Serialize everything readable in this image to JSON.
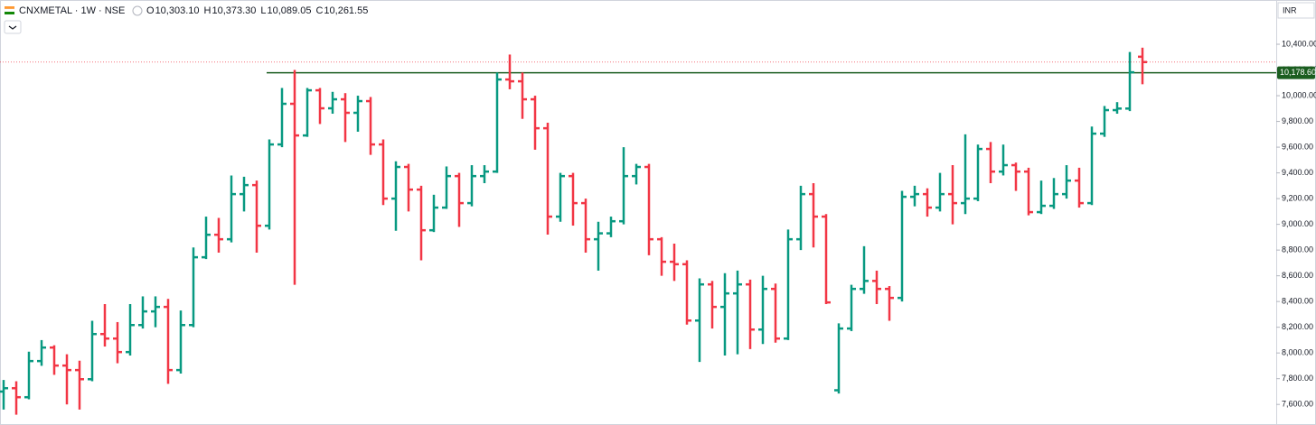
{
  "header": {
    "symbol": "CNXMETAL · 1W · NSE",
    "ohlc": [
      {
        "key": "O",
        "label": "10,303.10"
      },
      {
        "key": "H",
        "label": "10,373.30"
      },
      {
        "key": "L",
        "label": "10,089.05"
      },
      {
        "key": "C",
        "label": "10,261.55"
      }
    ],
    "currency": "INR"
  },
  "chart_data": {
    "type": "ohlc",
    "up_color": "#089981",
    "down_color": "#f23645",
    "ylim": [
      7440,
      10744
    ],
    "yticks": [
      {
        "value": 7600,
        "label": "7,600.00"
      },
      {
        "value": 7800,
        "label": "7,800.00"
      },
      {
        "value": 8000,
        "label": "8,000.00"
      },
      {
        "value": 8200,
        "label": "8,200.00"
      },
      {
        "value": 8400,
        "label": "8,400.00"
      },
      {
        "value": 8600,
        "label": "8,600.00"
      },
      {
        "value": 8800,
        "label": "8,800.00"
      },
      {
        "value": 9000,
        "label": "9,000.00"
      },
      {
        "value": 9200,
        "label": "9,200.00"
      },
      {
        "value": 9400,
        "label": "9,400.00"
      },
      {
        "value": 9600,
        "label": "9,600.00"
      },
      {
        "value": 9800,
        "label": "9,800.00"
      },
      {
        "value": 10000,
        "label": "10,000.00"
      },
      {
        "value": 10200,
        "label": "10,200.00"
      },
      {
        "value": 10400,
        "label": "10,400.00"
      }
    ],
    "hline": {
      "value": 10178.6,
      "label": "10,178.60",
      "color": "#1b5e20"
    },
    "ohlc": [
      [
        7700,
        7790,
        7560,
        7726
      ],
      [
        7726,
        7780,
        7520,
        7656
      ],
      [
        7656,
        8010,
        7640,
        7937
      ],
      [
        7937,
        8100,
        7900,
        8042
      ],
      [
        8042,
        8060,
        7830,
        7902
      ],
      [
        7902,
        7990,
        7600,
        7867
      ],
      [
        7867,
        7940,
        7560,
        7796
      ],
      [
        7796,
        8250,
        7780,
        8147
      ],
      [
        8147,
        8380,
        8050,
        8112
      ],
      [
        8112,
        8240,
        7920,
        8007
      ],
      [
        8007,
        8380,
        7980,
        8217
      ],
      [
        8217,
        8440,
        8190,
        8323
      ],
      [
        8323,
        8440,
        8200,
        8358
      ],
      [
        8358,
        8420,
        7760,
        7867
      ],
      [
        7867,
        8330,
        7840,
        8217
      ],
      [
        8217,
        8820,
        8200,
        8744
      ],
      [
        8744,
        9060,
        8730,
        8919
      ],
      [
        8919,
        9050,
        8780,
        8884
      ],
      [
        8884,
        9380,
        8860,
        9235
      ],
      [
        9235,
        9370,
        9100,
        9305
      ],
      [
        9305,
        9340,
        8780,
        8989
      ],
      [
        8989,
        9660,
        8960,
        9621
      ],
      [
        9621,
        10060,
        9600,
        9937
      ],
      [
        9937,
        10200,
        8530,
        9691
      ],
      [
        9691,
        10060,
        9680,
        10042
      ],
      [
        10042,
        10060,
        9780,
        9902
      ],
      [
        9902,
        10030,
        9860,
        9972
      ],
      [
        9972,
        10020,
        9640,
        9867
      ],
      [
        9867,
        10000,
        9720,
        9958
      ],
      [
        9958,
        9990,
        9540,
        9621
      ],
      [
        9621,
        9660,
        9150,
        9200
      ],
      [
        9200,
        9490,
        8950,
        9446
      ],
      [
        9446,
        9470,
        9100,
        9270
      ],
      [
        9270,
        9300,
        8720,
        8954
      ],
      [
        8954,
        9230,
        8940,
        9130
      ],
      [
        9130,
        9450,
        9120,
        9375
      ],
      [
        9375,
        9400,
        8980,
        9165
      ],
      [
        9165,
        9460,
        9140,
        9375
      ],
      [
        9375,
        9460,
        9320,
        9410
      ],
      [
        9410,
        10180,
        9400,
        10126
      ],
      [
        10126,
        10320,
        10050,
        10112
      ],
      [
        10112,
        10180,
        9820,
        9972
      ],
      [
        9972,
        10000,
        9580,
        9747
      ],
      [
        9747,
        9790,
        8920,
        9060
      ],
      [
        9060,
        9400,
        9020,
        9375
      ],
      [
        9375,
        9400,
        8990,
        9165
      ],
      [
        9165,
        9200,
        8780,
        8884
      ],
      [
        8884,
        9020,
        8640,
        8930
      ],
      [
        8930,
        9060,
        8900,
        9024
      ],
      [
        9024,
        9600,
        9000,
        9375
      ],
      [
        9375,
        9470,
        9310,
        9446
      ],
      [
        9446,
        9470,
        8760,
        8884
      ],
      [
        8884,
        8900,
        8600,
        8709
      ],
      [
        8709,
        8850,
        8560,
        8690
      ],
      [
        8690,
        8720,
        8220,
        8252
      ],
      [
        8252,
        8580,
        7930,
        8533
      ],
      [
        8533,
        8560,
        8190,
        8358
      ],
      [
        8358,
        8620,
        7980,
        8463
      ],
      [
        8463,
        8640,
        7990,
        8533
      ],
      [
        8533,
        8570,
        8030,
        8182
      ],
      [
        8182,
        8600,
        8070,
        8498
      ],
      [
        8498,
        8540,
        8080,
        8112
      ],
      [
        8112,
        8960,
        8100,
        8884
      ],
      [
        8884,
        9300,
        8800,
        9235
      ],
      [
        9235,
        9320,
        8820,
        9060
      ],
      [
        9060,
        9080,
        8380,
        8393
      ],
      [
        7710,
        8230,
        7685,
        8190
      ],
      [
        8190,
        8530,
        8170,
        8498
      ],
      [
        8498,
        8830,
        8460,
        8560
      ],
      [
        8560,
        8640,
        8380,
        8498
      ],
      [
        8498,
        8520,
        8250,
        8428
      ],
      [
        8428,
        9260,
        8400,
        9214
      ],
      [
        9214,
        9300,
        9140,
        9235
      ],
      [
        9235,
        9280,
        9060,
        9130
      ],
      [
        9130,
        9400,
        9100,
        9235
      ],
      [
        9235,
        9460,
        9000,
        9165
      ],
      [
        9165,
        9700,
        9080,
        9200
      ],
      [
        9200,
        9620,
        9180,
        9586
      ],
      [
        9586,
        9640,
        9320,
        9410
      ],
      [
        9410,
        9620,
        9380,
        9460
      ],
      [
        9460,
        9480,
        9260,
        9410
      ],
      [
        9410,
        9440,
        9070,
        9095
      ],
      [
        9095,
        9340,
        9080,
        9144
      ],
      [
        9144,
        9360,
        9120,
        9235
      ],
      [
        9235,
        9460,
        9200,
        9340
      ],
      [
        9340,
        9440,
        9130,
        9165
      ],
      [
        9165,
        9760,
        9150,
        9705
      ],
      [
        9705,
        9920,
        9680,
        9888
      ],
      [
        9888,
        9950,
        9860,
        9900
      ],
      [
        9900,
        10340,
        9880,
        10182
      ],
      [
        10303.1,
        10373.3,
        10089.05,
        10261.55
      ]
    ]
  }
}
